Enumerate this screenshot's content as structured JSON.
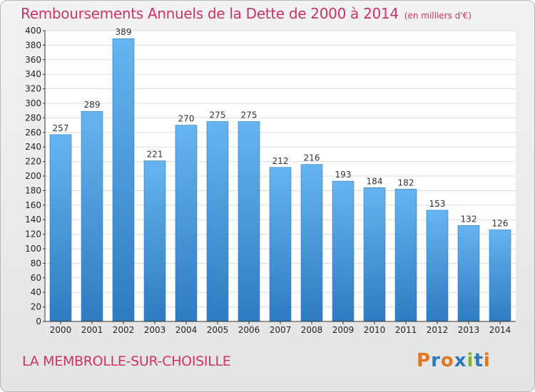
{
  "title": "Remboursements Annuels de la Dette de 2000 à 2014",
  "unit": "(en milliers d'€)",
  "commune": "LA MEMBROLLE-SUR-CHOISILLE",
  "logo": {
    "letters": [
      "P",
      "r",
      "o",
      "x",
      "i",
      "t",
      "i"
    ],
    "colors": [
      "#e07820",
      "#2a7ab8",
      "#e07820",
      "#2a7ab8",
      "#7ab82a",
      "#2a7ab8",
      "#e07820"
    ]
  },
  "colors": {
    "bar": "#4c9ee0",
    "bar_light": "#66b4f0",
    "bar_dark": "#2f7bc0",
    "title": "#cc3366"
  },
  "chart_data": {
    "type": "bar",
    "categories": [
      "2000",
      "2001",
      "2002",
      "2003",
      "2004",
      "2005",
      "2006",
      "2007",
      "2008",
      "2009",
      "2010",
      "2011",
      "2012",
      "2013",
      "2014"
    ],
    "values": [
      257,
      289,
      389,
      221,
      270,
      275,
      275,
      212,
      216,
      193,
      184,
      182,
      153,
      132,
      126
    ],
    "ylim": [
      0,
      400
    ],
    "yticks": [
      0,
      20,
      40,
      60,
      80,
      100,
      120,
      140,
      160,
      180,
      200,
      220,
      240,
      260,
      280,
      300,
      320,
      340,
      360,
      380,
      400
    ],
    "grid": true,
    "data_labels": true
  }
}
